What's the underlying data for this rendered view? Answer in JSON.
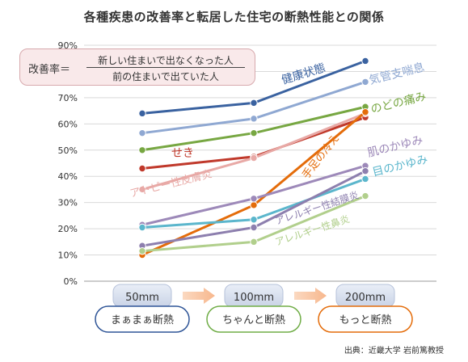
{
  "title": "各種疾患の改善率と転居した住宅の断熱性能との関係",
  "formula": {
    "label": "改善率＝",
    "numerator": "新しい住まいで出なくなった人",
    "denominator": "前の住まいで出ていた人"
  },
  "categories": [
    {
      "thickness": "50mm",
      "level": "まぁまぁ断熱",
      "color": "#2f5597"
    },
    {
      "thickness": "100mm",
      "level": "ちゃんと断熱",
      "color": "#70ad47"
    },
    {
      "thickness": "200mm",
      "level": "もっと断熱",
      "color": "#e46c0a"
    }
  ],
  "source": "出典：近畿大学 岩前篤教授",
  "chart_data": {
    "type": "line",
    "categories": [
      "50mm",
      "100mm",
      "200mm"
    ],
    "ylim": [
      0,
      90
    ],
    "yticks": [
      "0%",
      "10%",
      "20%",
      "30%",
      "40%",
      "50%",
      "60%",
      "70%",
      "80%",
      "90%"
    ],
    "grid": true,
    "series": [
      {
        "name": "健康状態",
        "values": [
          64,
          68,
          84
        ],
        "color": "#3a62a0"
      },
      {
        "name": "気管支喘息",
        "values": [
          56.5,
          62,
          76
        ],
        "color": "#8fa8d2"
      },
      {
        "name": "のどの痛み",
        "values": [
          50,
          56.5,
          66.5
        ],
        "color": "#77a742"
      },
      {
        "name": "せき",
        "values": [
          43,
          47.5,
          62.5
        ],
        "color": "#c0392b"
      },
      {
        "name": "アトピー性皮膚炎",
        "values": [
          35,
          47,
          64
        ],
        "color": "#e8a9a6"
      },
      {
        "name": "手足の冷え",
        "values": [
          10,
          29,
          64.5
        ],
        "color": "#e46c0a"
      },
      {
        "name": "肌のかゆみ",
        "values": [
          21.5,
          31.5,
          44
        ],
        "color": "#9d89b9"
      },
      {
        "name": "目のかゆみ",
        "values": [
          20.5,
          23.5,
          39
        ],
        "color": "#5bb6cc"
      },
      {
        "name": "アレルギー性結膜炎",
        "values": [
          13.5,
          20.5,
          42
        ],
        "color": "#8d7fae"
      },
      {
        "name": "アレルギー性鼻炎",
        "values": [
          11.5,
          15,
          32.5
        ],
        "color": "#b1cf8c"
      }
    ]
  }
}
